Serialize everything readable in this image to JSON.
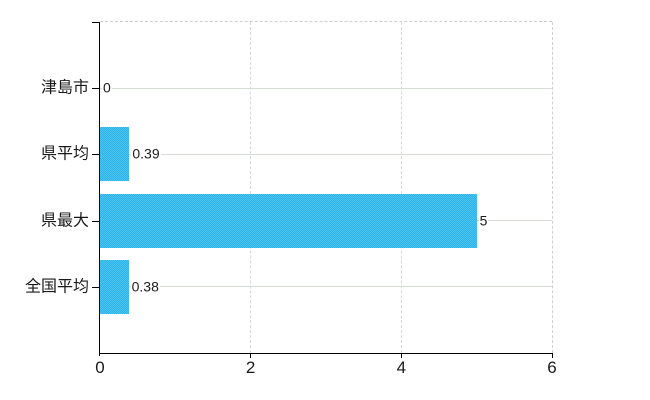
{
  "chart_data": {
    "type": "bar",
    "orientation": "horizontal",
    "title": "",
    "categories": [
      "津島市",
      "県平均",
      "県最大",
      "全国平均"
    ],
    "values": [
      0,
      0.39,
      5,
      0.38
    ],
    "value_labels": [
      "0",
      "0.39",
      "5",
      "0.38"
    ],
    "xlim": [
      0,
      6
    ],
    "x_ticks": [
      0,
      2,
      4,
      6
    ],
    "x_tick_labels": [
      "0",
      "2",
      "4",
      "6"
    ],
    "grid": true,
    "legend_position": "none"
  },
  "colors": {
    "bar": "#3cbdee",
    "bar_dither_dark": "#2eb3e8",
    "bar_dither_light": "#4cc4f1",
    "axis": "#000000",
    "grid_horizontal": "#d5ddd5",
    "grid_vertical": "#d7d7e2",
    "border_dashed": "#cfcfcf",
    "text": "#1a1a1a",
    "background": "#ffffff"
  }
}
